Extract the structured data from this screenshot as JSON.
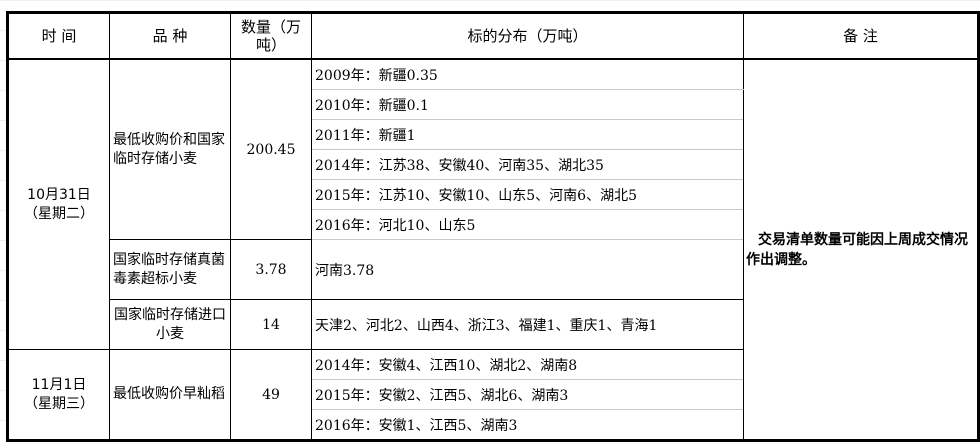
{
  "headers": {
    "time": "时 间",
    "variety": "品 种",
    "quantity": "数量（万吨）",
    "distribution": "标的分布（万吨）",
    "remarks": "备 注"
  },
  "groups": [
    {
      "date": "10月31日",
      "weekday": "（星期二）",
      "items": [
        {
          "variety": "最低收购价和国家临时存储小麦",
          "quantity": "200.45",
          "distribution": [
            "2009年：新疆0.35",
            "2010年：新疆0.1",
            "2011年：新疆1",
            "2014年：江苏38、安徽40、河南35、湖北35",
            "2015年：江苏10、安徽10、山东5、河南6、湖北5",
            "2016年：河北10、山东5"
          ]
        },
        {
          "variety": "国家临时存储真菌毒素超标小麦",
          "quantity": "3.78",
          "distribution": [
            "河南3.78"
          ]
        },
        {
          "variety": "国家临时存储进口小麦",
          "quantity": "14",
          "distribution": [
            "天津2、河北2、山西4、浙江3、福建1、重庆1、青海1"
          ]
        }
      ]
    },
    {
      "date": "11月1日",
      "weekday": "（星期三）",
      "items": [
        {
          "variety": "最低收购价早籼稻",
          "quantity": "49",
          "distribution": [
            "2014年：安徽4、江西10、湖北2、湖南8",
            "2015年：安徽2、江西5、湖北6、湖南3",
            "2016年：安徽1、江西5、湖南3"
          ]
        }
      ]
    }
  ],
  "remarks": "交易清单数量可能因上周成交情况作出调整。"
}
